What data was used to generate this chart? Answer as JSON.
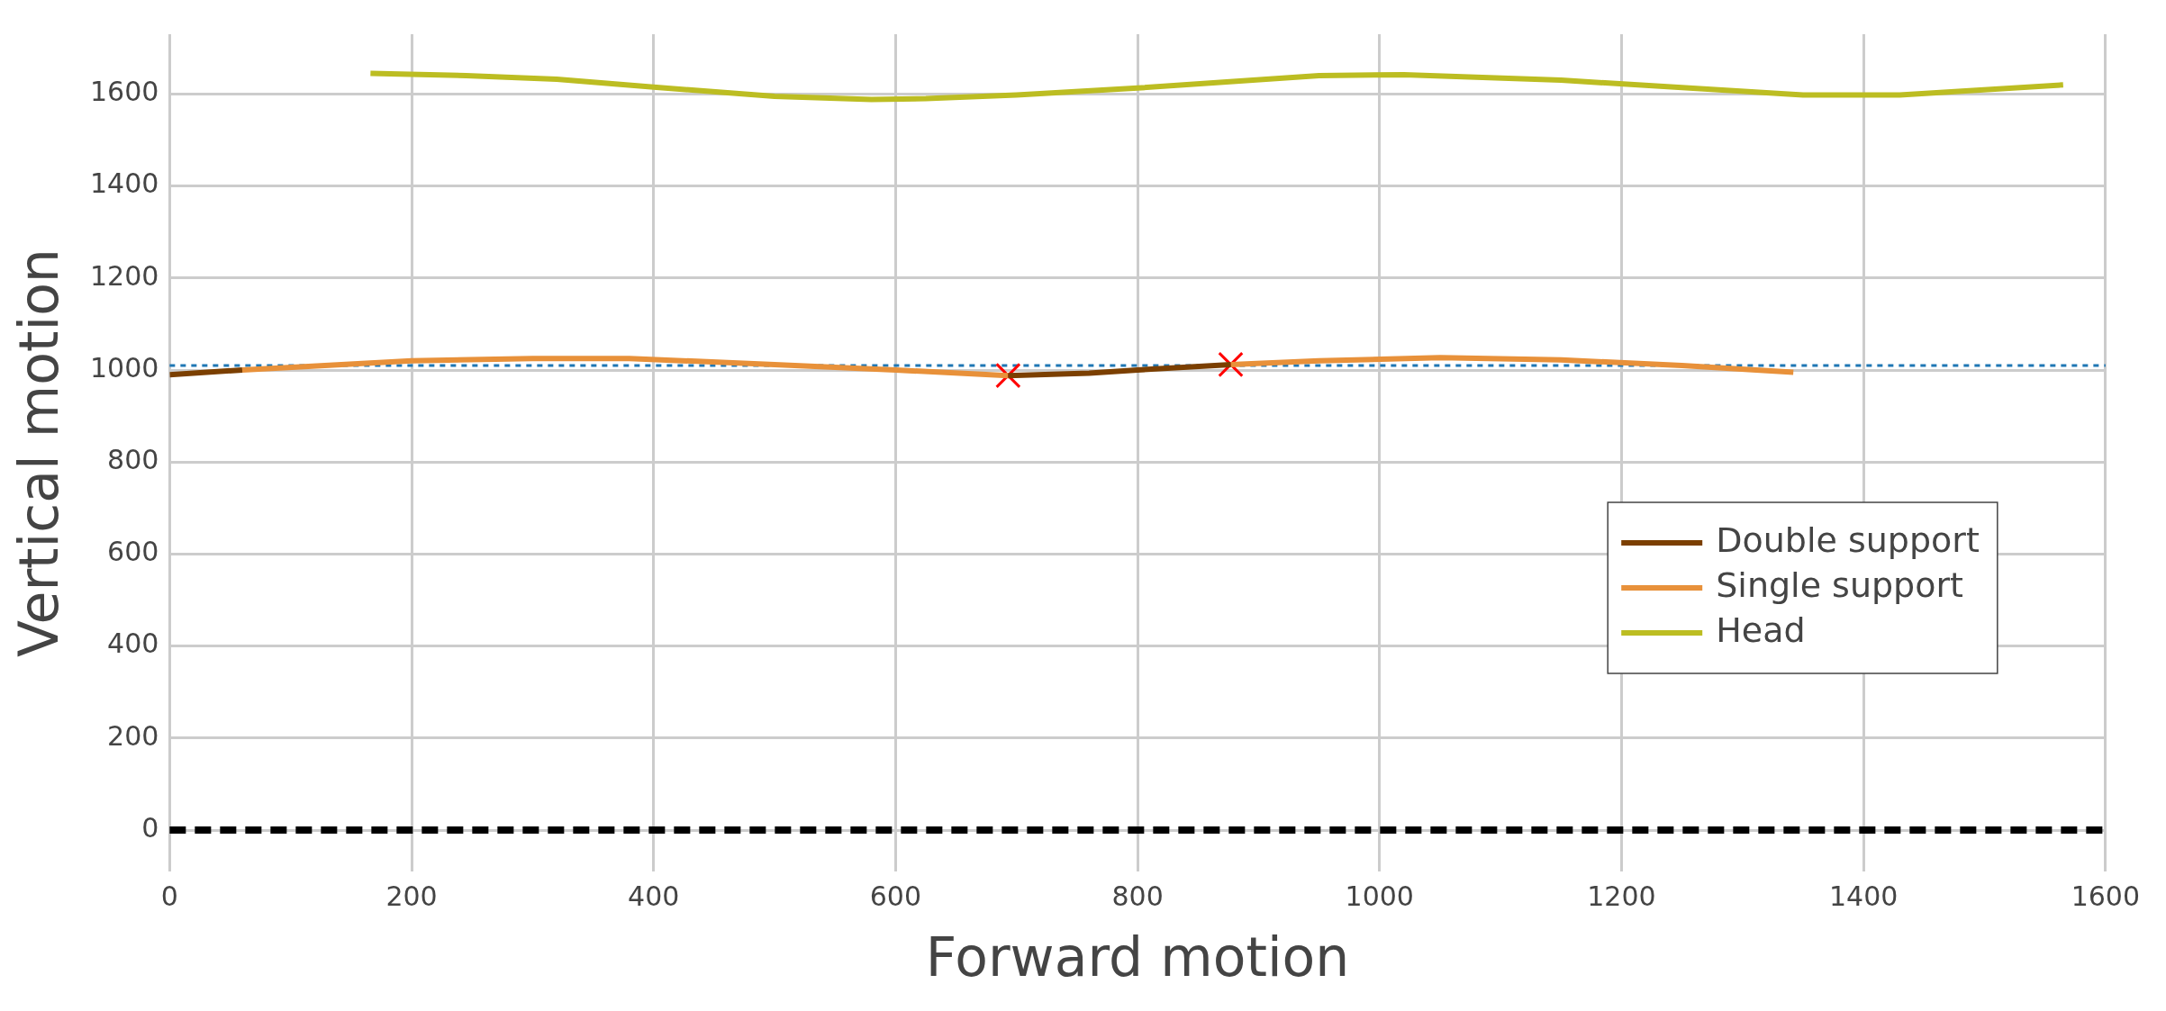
{
  "chart_data": {
    "type": "line",
    "xlabel": "Forward motion",
    "ylabel": "Vertical motion",
    "xlim": [
      0,
      1600
    ],
    "ylim": [
      -90,
      1730
    ],
    "xticks": [
      0,
      200,
      400,
      600,
      800,
      1000,
      1200,
      1400,
      1600
    ],
    "yticks": [
      0,
      200,
      400,
      600,
      800,
      1000,
      1200,
      1400,
      1600
    ],
    "grid": true,
    "legend": "right",
    "line_style": "solid",
    "series": [
      {
        "name": "Double support",
        "color": "#7b3f00",
        "x": [
          0,
          60,
          400,
          693,
          760,
          800,
          877
        ],
        "values": [
          990,
          1000,
          null,
          988,
          993,
          1000,
          1012
        ]
      },
      {
        "name": "Single support",
        "color": "#e8913a",
        "x": [
          60,
          200,
          300,
          380,
          500,
          600,
          693,
          780,
          877,
          950,
          1050,
          1150,
          1250,
          1342
        ],
        "values": [
          1000,
          1020,
          1025,
          1025,
          1012,
          1000,
          988,
          null,
          1012,
          1020,
          1027,
          1022,
          1010,
          995
        ]
      },
      {
        "name": "Head",
        "color": "#bcbd22",
        "x": [
          166,
          245,
          320,
          400,
          500,
          580,
          625,
          700,
          800,
          950,
          1020,
          1150,
          1350,
          1430,
          1565
        ],
        "values": [
          1645,
          1640,
          1632,
          1615,
          1595,
          1588,
          1590,
          1598,
          1613,
          1640,
          1642,
          1630,
          1598,
          1598,
          1620
        ]
      },
      {
        "type": "scatter",
        "color": "#ff0000",
        "marker": "cross",
        "x": [
          693,
          877
        ],
        "values": [
          988,
          1012
        ]
      }
    ],
    "ref_lines": [
      {
        "axis": "y",
        "value": 1010,
        "color": "#1f77b4",
        "line_style": "dotted"
      },
      {
        "axis": "y",
        "value": 0,
        "color": "#000000",
        "line_style": "dashed"
      }
    ]
  }
}
